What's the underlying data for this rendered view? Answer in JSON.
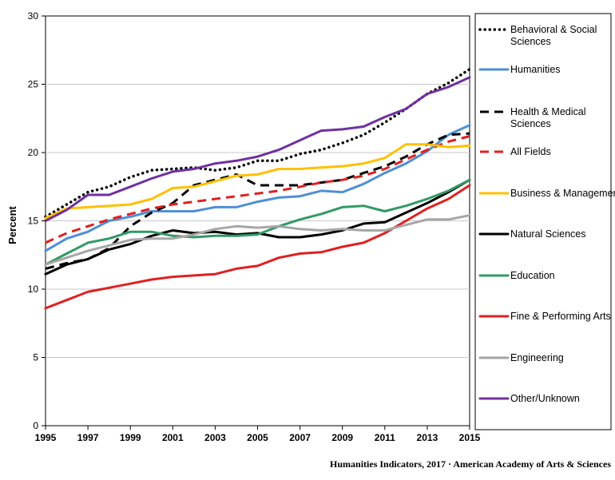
{
  "credit": "Humanities Indicators, 2017 · American Academy of Arts & Sciences",
  "chart_data": {
    "type": "line",
    "title": "",
    "xlabel": "",
    "ylabel": "Percent",
    "x": [
      1995,
      1996,
      1997,
      1998,
      1999,
      2000,
      2001,
      2002,
      2003,
      2004,
      2005,
      2006,
      2007,
      2008,
      2009,
      2010,
      2011,
      2012,
      2013,
      2014,
      2015
    ],
    "xlim": [
      1995,
      2015
    ],
    "ylim": [
      0,
      30
    ],
    "x_ticks": [
      "1995",
      "1997",
      "1999",
      "2001",
      "2003",
      "2005",
      "2007",
      "2009",
      "2011",
      "2013",
      "2015"
    ],
    "y_ticks": [
      "0",
      "5",
      "10",
      "15",
      "20",
      "25",
      "30"
    ],
    "grid": "horizontal",
    "legend_placement": "right",
    "series": [
      {
        "name": "Behavioral & Social Sciences",
        "color": "#000000",
        "style": "dotted",
        "values": [
          15.3,
          16.2,
          17.1,
          17.5,
          18.2,
          18.7,
          18.8,
          18.9,
          18.7,
          18.9,
          19.4,
          19.4,
          19.9,
          20.2,
          20.7,
          21.3,
          22.2,
          23.2,
          24.3,
          25.1,
          26.1
        ]
      },
      {
        "name": "Humanities",
        "color": "#4f8fd4",
        "style": "solid",
        "values": [
          12.8,
          13.7,
          14.2,
          15.0,
          15.3,
          15.7,
          15.7,
          15.7,
          16.0,
          16.0,
          16.4,
          16.7,
          16.8,
          17.2,
          17.1,
          17.7,
          18.5,
          19.2,
          20.1,
          21.3,
          22.0
        ]
      },
      {
        "name": "Health & Medical Sciences",
        "color": "#000000",
        "style": "dashed",
        "values": [
          11.5,
          11.9,
          12.2,
          13.0,
          14.6,
          15.6,
          16.3,
          17.6,
          18.0,
          18.4,
          17.6,
          17.6,
          17.6,
          17.8,
          18.0,
          18.5,
          19.0,
          19.7,
          20.6,
          21.3,
          21.4
        ]
      },
      {
        "name": "All Fields",
        "color": "#e02020",
        "style": "dashed",
        "values": [
          13.4,
          14.1,
          14.6,
          15.1,
          15.5,
          15.9,
          16.2,
          16.4,
          16.6,
          16.8,
          17.0,
          17.2,
          17.5,
          17.8,
          18.0,
          18.3,
          18.8,
          19.5,
          20.2,
          20.8,
          21.2
        ]
      },
      {
        "name": "Business & Management",
        "color": "#ffc000",
        "style": "solid",
        "values": [
          15.2,
          15.9,
          16.0,
          16.1,
          16.2,
          16.6,
          17.4,
          17.5,
          17.9,
          18.3,
          18.4,
          18.8,
          18.8,
          18.9,
          19.0,
          19.2,
          19.6,
          20.6,
          20.6,
          20.4,
          20.5
        ]
      },
      {
        "name": "Natural Sciences",
        "color": "#000000",
        "style": "solid",
        "values": [
          11.1,
          11.8,
          12.2,
          12.9,
          13.3,
          13.9,
          14.3,
          14.1,
          14.2,
          14.0,
          14.1,
          13.8,
          13.8,
          14.0,
          14.3,
          14.8,
          14.9,
          15.6,
          16.3,
          17.1,
          18.0
        ]
      },
      {
        "name": "Education",
        "color": "#339966",
        "style": "solid",
        "values": [
          11.8,
          12.6,
          13.4,
          13.7,
          14.2,
          14.2,
          13.9,
          13.8,
          13.9,
          13.9,
          14.0,
          14.6,
          15.1,
          15.5,
          16.0,
          16.1,
          15.7,
          16.1,
          16.6,
          17.2,
          18.0
        ]
      },
      {
        "name": "Fine & Performing Arts",
        "color": "#e02020",
        "style": "solid",
        "values": [
          8.6,
          9.2,
          9.8,
          10.1,
          10.4,
          10.7,
          10.9,
          11.0,
          11.1,
          11.5,
          11.7,
          12.3,
          12.6,
          12.7,
          13.1,
          13.4,
          14.1,
          15.0,
          15.9,
          16.6,
          17.6
        ]
      },
      {
        "name": "Engineering",
        "color": "#a6a6a6",
        "style": "solid",
        "values": [
          11.8,
          12.3,
          12.8,
          13.2,
          13.6,
          13.7,
          13.7,
          14.0,
          14.4,
          14.6,
          14.5,
          14.6,
          14.4,
          14.3,
          14.4,
          14.3,
          14.3,
          14.7,
          15.1,
          15.1,
          15.4
        ]
      },
      {
        "name": "Other/Unknown",
        "color": "#7030a0",
        "style": "solid",
        "values": [
          15.0,
          15.8,
          16.9,
          16.9,
          17.5,
          18.1,
          18.6,
          18.8,
          19.2,
          19.4,
          19.7,
          20.2,
          20.9,
          21.6,
          21.7,
          21.9,
          22.6,
          23.2,
          24.3,
          24.8,
          25.5
        ]
      }
    ]
  }
}
